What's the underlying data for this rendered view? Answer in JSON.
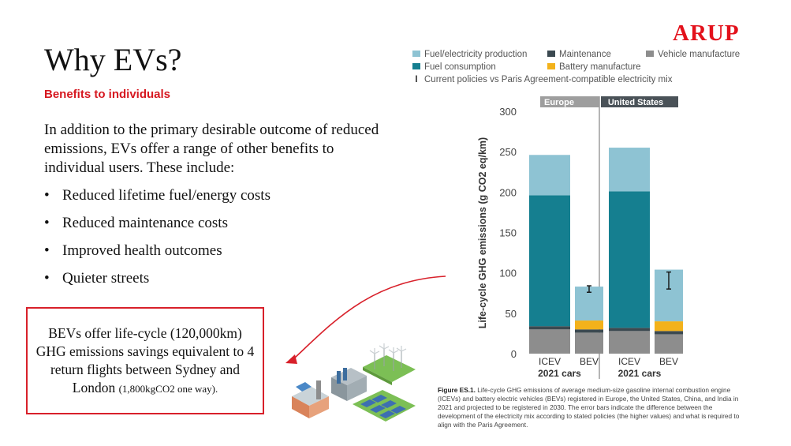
{
  "logo": "ARUP",
  "slide": {
    "title": "Why EVs?",
    "subtitle": "Benefits to individuals",
    "intro": "In addition to the primary desirable outcome of reduced emissions, EVs offer a range of other benefits to individual users. These include:",
    "bullets": [
      "Reduced lifetime fuel/energy costs",
      "Reduced maintenance costs",
      "Improved health outcomes",
      "Quieter streets"
    ],
    "callout_main": "BEVs offer life-cycle (120,000km) GHG emissions savings equivalent to 4 return flights between Sydney and London",
    "callout_small": "(1,800kgCO2 one way)."
  },
  "chart_data": {
    "type": "bar",
    "stacked": true,
    "ylabel": "Life-cycle GHG emissions (g CO2 eq/km)",
    "ylim": [
      0,
      300
    ],
    "yticks": [
      "0",
      "50",
      "100",
      "150",
      "200",
      "250",
      "300"
    ],
    "group_xlabel": "2021 cars",
    "panels": [
      {
        "name": "Europe",
        "categories": [
          "ICEV",
          "BEV"
        ],
        "series": [
          {
            "name": "Vehicle manufacture",
            "values": [
              30,
              26
            ]
          },
          {
            "name": "Maintenance",
            "values": [
              4,
              4
            ]
          },
          {
            "name": "Battery manufacture",
            "values": [
              0,
              11
            ]
          },
          {
            "name": "Fuel consumption",
            "values": [
              162,
              0
            ]
          },
          {
            "name": "Fuel/electricity production",
            "values": [
              50,
              42
            ]
          }
        ],
        "error_bars": [
          null,
          {
            "low": 76,
            "high": 84
          }
        ]
      },
      {
        "name": "United States",
        "categories": [
          "ICEV",
          "BEV"
        ],
        "series": [
          {
            "name": "Vehicle manufacture",
            "values": [
              28,
              24
            ]
          },
          {
            "name": "Maintenance",
            "values": [
              4,
              4
            ]
          },
          {
            "name": "Battery manufacture",
            "values": [
              0,
              12
            ]
          },
          {
            "name": "Fuel consumption",
            "values": [
              169,
              0
            ]
          },
          {
            "name": "Fuel/electricity production",
            "values": [
              54,
              64
            ]
          }
        ],
        "error_bars": [
          null,
          {
            "low": 80,
            "high": 101
          }
        ]
      }
    ],
    "legend": {
      "placement": "top",
      "items": [
        {
          "label": "Fuel/electricity production",
          "color": "#8ec3d3"
        },
        {
          "label": "Maintenance",
          "color": "#3b4950"
        },
        {
          "label": "Vehicle manufacture",
          "color": "#8d8d8d"
        },
        {
          "label": "Fuel consumption",
          "color": "#157f90"
        },
        {
          "label": "Battery manufacture",
          "color": "#f3b21b"
        }
      ],
      "errorbar_label": "Current policies vs Paris Agreement-compatible electricity mix"
    },
    "colors": {
      "Vehicle manufacture": "#8d8d8d",
      "Maintenance": "#3b4950",
      "Battery manufacture": "#f3b21b",
      "Fuel consumption": "#157f90",
      "Fuel/electricity production": "#8ec3d3"
    },
    "caption_label": "Figure ES.1.",
    "caption": "Life-cycle GHG emissions of average medium-size gasoline internal combustion engine (ICEVs) and battery electric vehicles (BEVs) registered in Europe, the United States, China, and India in 2021 and projected to be registered in 2030. The error bars indicate the difference between the development of the electricity mix according to stated policies (the higher values) and what is required to align with the Paris Agreement."
  }
}
